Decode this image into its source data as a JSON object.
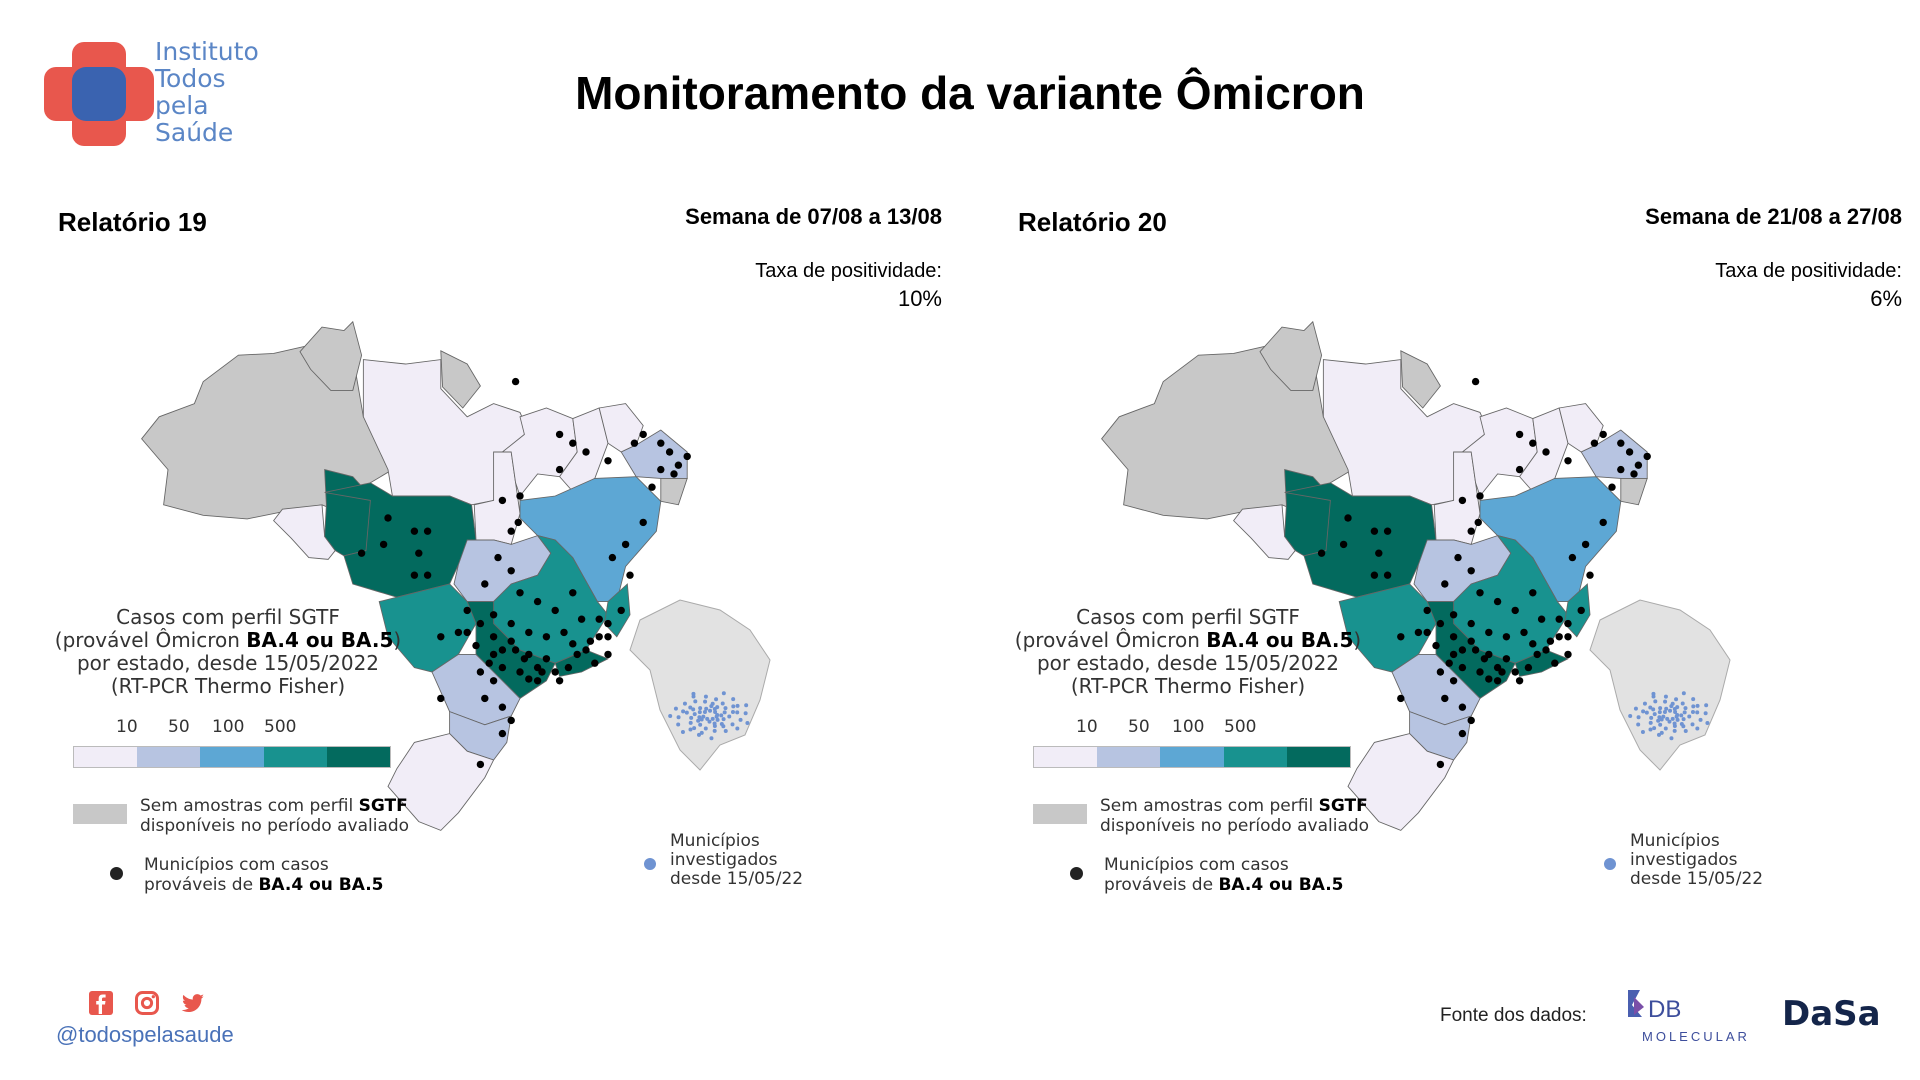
{
  "header": {
    "logo_lines": [
      "Instituto",
      "Todos",
      "pela",
      "Saúde"
    ],
    "title": "Monitoramento da variante Ômicron"
  },
  "colors": {
    "scale": [
      "#f1edf7",
      "#b7c4e1",
      "#5da7d4",
      "#18928f",
      "#036a5e"
    ],
    "no_sample": "#c8c8c8",
    "municipality_dot": "#000000",
    "investigated_dot": "#6f93d2",
    "brand_red": "#e8574d",
    "brand_blue": "#3a63b0"
  },
  "panels": [
    {
      "report": "Relatório 19",
      "week": "Semana de 07/08 a 13/08",
      "positivity_label": "Taxa de positividade:",
      "positivity_value": "10%"
    },
    {
      "report": "Relatório 20",
      "week": "Semana de 21/08 a 27/08",
      "positivity_label": "Taxa de positividade:",
      "positivity_value": "6%"
    }
  ],
  "legend": {
    "title_line1": "Casos com perfil SGTF",
    "title_line2_pre": "(provável Ômicron ",
    "title_line2_bold": "BA.4 ou BA.5",
    "title_line2_post": ")",
    "title_line3": "por estado, desde 15/05/2022",
    "title_line4": "(RT-PCR Thermo Fisher)",
    "ticks": [
      "10",
      "50",
      "100",
      "500"
    ],
    "no_sample_line1_pre": "Sem amostras com perfil ",
    "no_sample_line1_bold": "SGTF",
    "no_sample_line2": "disponíveis no período avaliado",
    "dots_line1": "Municípios com casos",
    "dots_line2_pre": "prováveis de ",
    "dots_line2_bold": "BA.4 ou BA.5",
    "investigated_lines": [
      "Municípios",
      "investigados",
      "desde 15/05/22"
    ]
  },
  "footer": {
    "handle": "@todospelasaude",
    "source_label": "Fonte dos dados:",
    "db_logo_main": "DB",
    "db_logo_sub": "MOLECULAR",
    "dasa_logo": "DaSa"
  },
  "icons": [
    "facebook-icon",
    "instagram-icon",
    "twitter-icon"
  ]
}
